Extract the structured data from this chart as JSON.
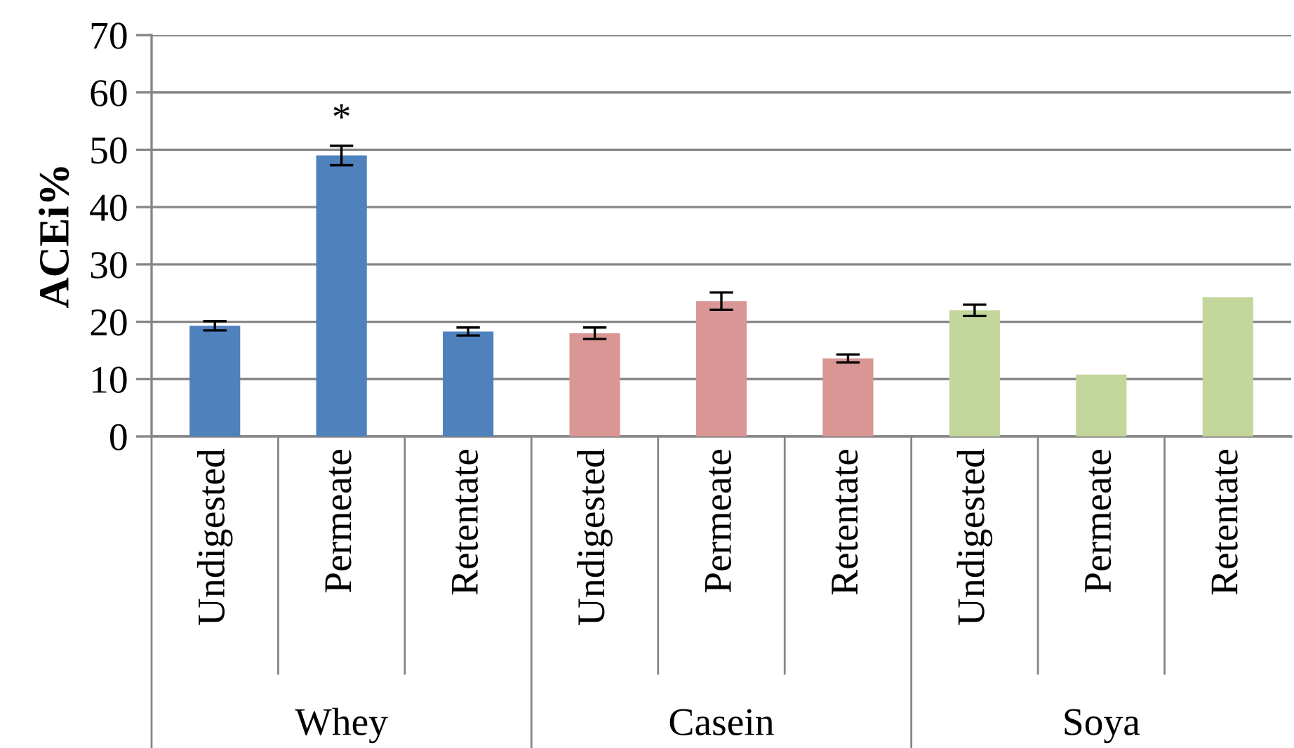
{
  "chart_data": {
    "type": "bar",
    "ylabel": "ACEi%",
    "categories": [
      "Undigested",
      "Permeate",
      "Retentate",
      "Undigested",
      "Permeate",
      "Retentate",
      "Undigested",
      "Permeate",
      "Retentate"
    ],
    "values": [
      19.3,
      49.0,
      18.3,
      18.0,
      23.6,
      13.6,
      22.0,
      10.8,
      24.3
    ],
    "errors": [
      0.8,
      1.7,
      0.7,
      1.0,
      1.5,
      0.7,
      1.0,
      null,
      null
    ],
    "colors": [
      "#4f81bd",
      "#4f81bd",
      "#4f81bd",
      "#d99694",
      "#d99694",
      "#d99694",
      "#c3d69b",
      "#c3d69b",
      "#c3d69b"
    ],
    "ylim": [
      0,
      70
    ],
    "yticks": [
      0,
      10,
      20,
      30,
      40,
      50,
      60,
      70
    ],
    "grid": "y",
    "annotations": [
      {
        "text": "*",
        "x": "Permeate",
        "y": 49.0
      },
      "Whey",
      "Casein",
      "Soya"
    ]
  }
}
